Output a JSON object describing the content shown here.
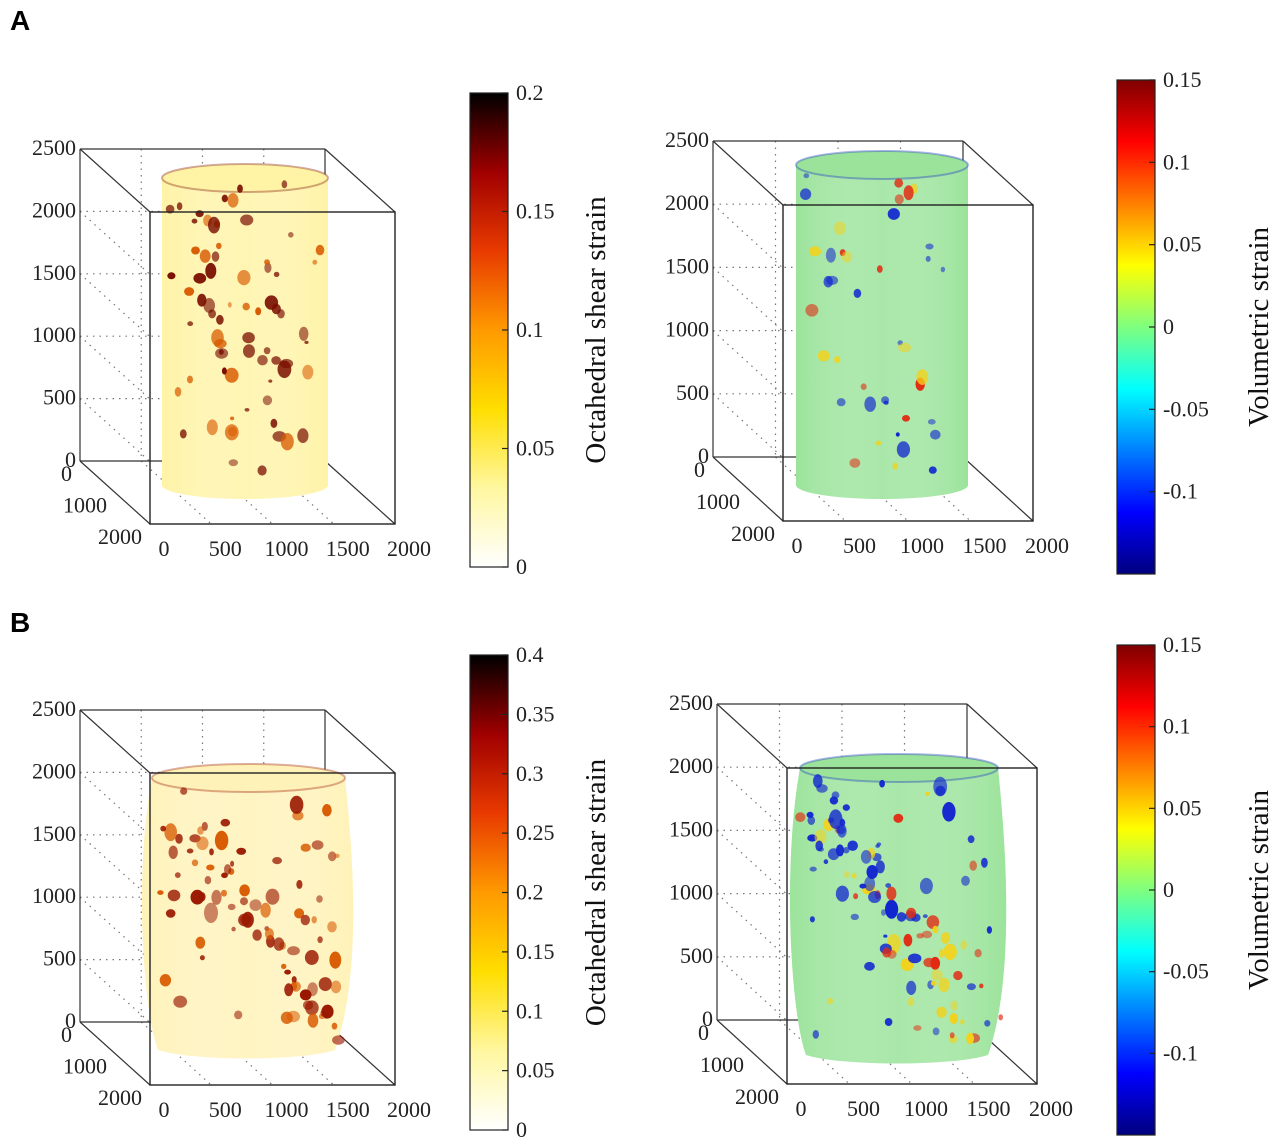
{
  "panels": [
    {
      "letter": "A"
    },
    {
      "letter": "B"
    }
  ],
  "chart_data": [
    {
      "type": "heatmap",
      "panel": "A",
      "position": "left",
      "projection": "3d",
      "z_ticks": [
        "0",
        "500",
        "1000",
        "1500",
        "2000",
        "2500"
      ],
      "y_ticks": [
        "0",
        "1000",
        "2000"
      ],
      "x_ticks": [
        "0",
        "500",
        "1000",
        "1500",
        "2000"
      ],
      "colorbar": {
        "label": "Octahedral shear strain",
        "range": [
          0,
          0.2
        ],
        "ticks": [
          "0",
          "0.05",
          "0.1",
          "0.15",
          "0.2"
        ],
        "colormap": "hot",
        "stops": [
          "#ffffff",
          "#fff7a0",
          "#ffde00",
          "#ff9a00",
          "#e83a00",
          "#a00000",
          "#000000"
        ]
      },
      "specimen": {
        "shape": "cylinder",
        "base_color": "#fff3a6",
        "spot_color": "#7a0e00",
        "spot_count": 70
      }
    },
    {
      "type": "heatmap",
      "panel": "A",
      "position": "right",
      "projection": "3d",
      "z_ticks": [
        "0",
        "500",
        "1000",
        "1500",
        "2000",
        "2500"
      ],
      "y_ticks": [
        "0",
        "1000",
        "2000"
      ],
      "x_ticks": [
        "0",
        "500",
        "1000",
        "1500",
        "2000"
      ],
      "colorbar": {
        "label": "Volumetric strain",
        "range": [
          -0.15,
          0.15
        ],
        "ticks": [
          "-0.1",
          "-0.05",
          "0",
          "0.05",
          "0.1",
          "0.15"
        ],
        "colormap": "jet",
        "stops": [
          "#00007f",
          "#0000ff",
          "#007fff",
          "#00ffff",
          "#7fff7f",
          "#ffff00",
          "#ff7f00",
          "#ff0000",
          "#7f0000"
        ]
      },
      "specimen": {
        "shape": "cylinder",
        "base_color": "#9be39b",
        "spot_color": "#1028c8",
        "spot_count": 40
      }
    },
    {
      "type": "heatmap",
      "panel": "B",
      "position": "left",
      "projection": "3d",
      "z_ticks": [
        "0",
        "500",
        "1000",
        "1500",
        "2000",
        "2500"
      ],
      "y_ticks": [
        "0",
        "1000",
        "2000"
      ],
      "x_ticks": [
        "0",
        "500",
        "1000",
        "1500",
        "2000"
      ],
      "colorbar": {
        "label": "Octahedral shear strain",
        "range": [
          0,
          0.4
        ],
        "ticks": [
          "0",
          "0.05",
          "0.1",
          "0.15",
          "0.2",
          "0.25",
          "0.3",
          "0.35",
          "0.4"
        ],
        "colormap": "hot",
        "stops": [
          "#ffffff",
          "#fff7a0",
          "#ffde00",
          "#ff9a00",
          "#e83a00",
          "#a00000",
          "#000000"
        ]
      },
      "specimen": {
        "shape": "barrel",
        "base_color": "#fff2b8",
        "spot_color": "#9a1800",
        "spot_count": 90
      }
    },
    {
      "type": "heatmap",
      "panel": "B",
      "position": "right",
      "projection": "3d",
      "z_ticks": [
        "0",
        "500",
        "1000",
        "1500",
        "2000",
        "2500"
      ],
      "y_ticks": [
        "0",
        "1000",
        "2000"
      ],
      "x_ticks": [
        "0",
        "500",
        "1000",
        "1500",
        "2000"
      ],
      "colorbar": {
        "label": "Volumetric strain",
        "range": [
          -0.15,
          0.15
        ],
        "ticks": [
          "-0.1",
          "-0.05",
          "0",
          "0.05",
          "0.1",
          "0.15"
        ],
        "colormap": "jet",
        "stops": [
          "#00007f",
          "#0000ff",
          "#007fff",
          "#00ffff",
          "#7fff7f",
          "#ffff00",
          "#ff7f00",
          "#ff0000",
          "#7f0000"
        ]
      },
      "specimen": {
        "shape": "barrel",
        "base_color": "#9be39b",
        "spot_color": "#1028c8",
        "spot_count": 110
      }
    }
  ]
}
